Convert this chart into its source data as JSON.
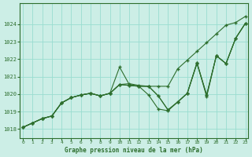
{
  "xlabel": "Graphe pression niveau de la mer (hPa)",
  "bg_color": "#cceee6",
  "grid_color": "#99ddd0",
  "line_color": "#2d6e2d",
  "marker_color": "#2d6e2d",
  "ylim": [
    1017.5,
    1025.2
  ],
  "xlim": [
    -0.3,
    23.3
  ],
  "yticks": [
    1018,
    1019,
    1020,
    1021,
    1022,
    1023,
    1024
  ],
  "xticks": [
    0,
    1,
    2,
    3,
    4,
    5,
    6,
    7,
    8,
    9,
    10,
    11,
    12,
    13,
    14,
    15,
    16,
    17,
    18,
    19,
    20,
    21,
    22,
    23
  ],
  "series": [
    [
      1018.1,
      1018.35,
      1018.6,
      1018.75,
      1019.5,
      1019.8,
      1019.95,
      1020.05,
      1019.9,
      1020.05,
      1020.55,
      1020.6,
      1020.5,
      1020.45,
      1019.9,
      1019.1,
      1019.55,
      1020.05,
      1021.75,
      1019.95,
      1022.2,
      1021.75,
      1023.2,
      1024.05
    ],
    [
      1018.1,
      1018.35,
      1018.6,
      1018.75,
      1019.5,
      1019.8,
      1019.95,
      1020.05,
      1019.9,
      1020.05,
      1021.55,
      1020.55,
      1020.45,
      1020.45,
      1019.9,
      1019.1,
      1019.55,
      1020.05,
      1021.8,
      1019.95,
      1022.2,
      1021.75,
      1023.2,
      1024.05
    ],
    [
      1018.1,
      1018.35,
      1018.6,
      1018.75,
      1019.5,
      1019.8,
      1019.95,
      1020.05,
      1019.9,
      1020.05,
      1020.55,
      1020.5,
      1020.45,
      1019.95,
      1019.15,
      1019.05,
      1019.55,
      1020.05,
      1021.8,
      1019.85,
      1022.2,
      1021.75,
      1023.2,
      1024.05
    ],
    [
      1018.1,
      1018.35,
      1018.6,
      1018.75,
      1019.5,
      1019.8,
      1019.95,
      1020.05,
      1019.9,
      1020.05,
      1020.55,
      1020.5,
      1020.45,
      1020.45,
      1020.45,
      1020.45,
      1021.45,
      1021.95,
      1022.45,
      1022.95,
      1023.45,
      1023.95,
      1024.1,
      1024.45
    ]
  ]
}
